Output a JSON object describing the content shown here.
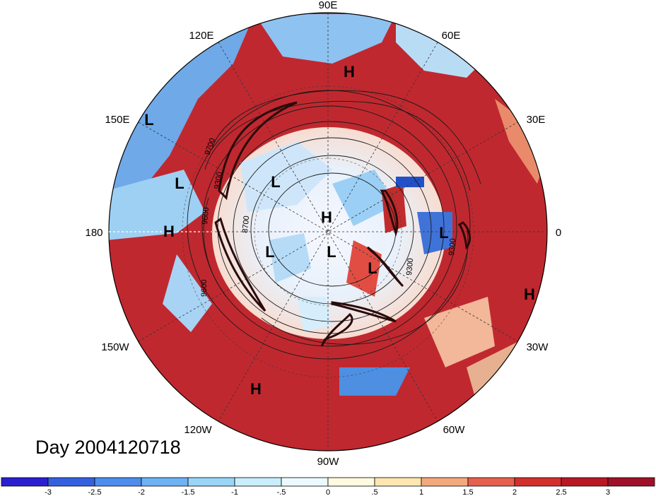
{
  "map": {
    "projection": "north-polar-stereographic",
    "longitude_labels": [
      {
        "text": "90E",
        "lon": 90
      },
      {
        "text": "60E",
        "lon": 60
      },
      {
        "text": "30E",
        "lon": 30
      },
      {
        "text": "0",
        "lon": 0
      },
      {
        "text": "30W",
        "lon": -30
      },
      {
        "text": "60W",
        "lon": -60
      },
      {
        "text": "90W",
        "lon": -90
      },
      {
        "text": "120W",
        "lon": -120
      },
      {
        "text": "150W",
        "lon": -150
      },
      {
        "text": "180",
        "lon": 180
      },
      {
        "text": "150E",
        "lon": 150
      },
      {
        "text": "120E",
        "lon": 120
      }
    ],
    "pressure_systems": [
      {
        "label": "H",
        "lon": 80,
        "lat": 42
      },
      {
        "label": "L",
        "lon": 148,
        "lat": 15
      },
      {
        "label": "L",
        "lon": 167,
        "lat": 32
      },
      {
        "label": "H",
        "lon": 180,
        "lat": 35
      },
      {
        "label": "L",
        "lon": 130,
        "lat": 65
      },
      {
        "label": "H",
        "lon": 90,
        "lat": 82
      },
      {
        "label": "L",
        "lon": 3,
        "lat": 52
      },
      {
        "label": "L",
        "lon": 220,
        "lat": 72
      },
      {
        "label": "L",
        "lon": 290,
        "lat": 82
      },
      {
        "label": "L",
        "lon": 325,
        "lat": 62
      },
      {
        "label": "H",
        "lon": 340,
        "lat": 20
      },
      {
        "label": "H",
        "lon": 237,
        "lat": 22
      }
    ],
    "contour_labels": [
      "9700",
      "9300",
      "9600",
      "8700",
      "9300",
      "9600",
      "9300"
    ],
    "anomaly_colors": {
      "warm": "#a5112a",
      "cool": "#4a8fe0",
      "neutral": "#ffffff"
    }
  },
  "title": "Day 2004120718",
  "colorbar": {
    "ticks": [
      "-3",
      "-2.5",
      "-2",
      "-1.5",
      "-1",
      "-.5",
      "0",
      ".5",
      "1",
      "1.5",
      "2",
      "2.5",
      "3"
    ],
    "colors": [
      "#2a1fd0",
      "#3460e0",
      "#4f8ded",
      "#6eb2f4",
      "#9ad5f8",
      "#c8eefc",
      "#eafaff",
      "#fffbe0",
      "#fde6b0",
      "#f4a97c",
      "#e5604e",
      "#d2302d",
      "#b81823",
      "#a0102a"
    ]
  }
}
